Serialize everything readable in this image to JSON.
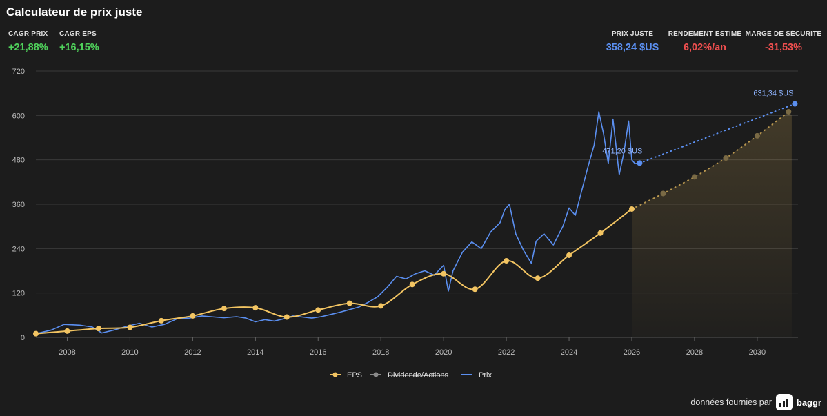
{
  "title": "Calculateur de prix juste",
  "metrics_left": [
    {
      "label": "CAGR PRIX",
      "value": "+21,88%",
      "color": "#4fd15b"
    },
    {
      "label": "CAGR EPS",
      "value": "+16,15%",
      "color": "#4fd15b"
    }
  ],
  "metrics_right": [
    {
      "label": "PRIX JUSTE",
      "value": "358,24 $US",
      "color": "#5b8ff0"
    },
    {
      "label": "RENDEMENT ESTIMÉ",
      "value": "6,02%/an",
      "color": "#ef4f4f"
    },
    {
      "label": "MARGE DE SÉCURITÉ",
      "value": "-31,53%",
      "color": "#ef4f4f"
    }
  ],
  "footer": {
    "text": "données fournies par",
    "brand": "baggr",
    "logo_icon": "bar-chart-logo-icon"
  },
  "chart_data": {
    "type": "line",
    "x_range": [
      2007,
      2031.3
    ],
    "ylim": [
      0,
      720
    ],
    "x_ticks": [
      2008,
      2010,
      2012,
      2014,
      2016,
      2018,
      2020,
      2022,
      2024,
      2026,
      2028,
      2030
    ],
    "y_ticks": [
      0,
      120,
      240,
      360,
      480,
      600,
      720
    ],
    "grid": true,
    "legend_position": "bottom-center",
    "colors": {
      "eps": "#f2c462",
      "dividend": "#8a8a8a",
      "price": "#5b8ff0",
      "grid": "#3a3a3a",
      "axis_text": "#bdbdbd"
    },
    "series": [
      {
        "name": "EPS",
        "x": [
          2007,
          2008,
          2009,
          2010,
          2011,
          2012,
          2013,
          2014,
          2015,
          2016,
          2017,
          2018,
          2019,
          2020,
          2021,
          2022,
          2023,
          2024,
          2025,
          2026
        ],
        "values": [
          10,
          17,
          24,
          27,
          45,
          58,
          78,
          80,
          55,
          74,
          92,
          85,
          143,
          172,
          130,
          207,
          160,
          222,
          282,
          347
        ]
      },
      {
        "name": "EPS (projection)",
        "x": [
          2026,
          2027,
          2028,
          2029,
          2030,
          2031
        ],
        "values": [
          347,
          389,
          434,
          485,
          545,
          610
        ]
      },
      {
        "name": "Prix",
        "x": [
          2007,
          2007.5,
          2007.9,
          2008.4,
          2008.8,
          2009.1,
          2009.5,
          2009.9,
          2010.3,
          2010.7,
          2011.1,
          2011.5,
          2011.9,
          2012.3,
          2012.7,
          2013.0,
          2013.4,
          2013.7,
          2014.0,
          2014.3,
          2014.6,
          2014.9,
          2015.2,
          2015.5,
          2015.8,
          2016.1,
          2016.4,
          2016.7,
          2017.0,
          2017.3,
          2017.6,
          2017.9,
          2018.2,
          2018.5,
          2018.8,
          2019.1,
          2019.4,
          2019.7,
          2020.0,
          2020.15,
          2020.3,
          2020.6,
          2020.9,
          2021.2,
          2021.5,
          2021.8,
          2021.95,
          2022.1,
          2022.3,
          2022.55,
          2022.8,
          2022.95,
          2023.2,
          2023.5,
          2023.8,
          2024.0,
          2024.2,
          2024.4,
          2024.6,
          2024.8,
          2024.95,
          2025.1,
          2025.25,
          2025.4,
          2025.6,
          2025.75,
          2025.9,
          2026.0,
          2026.1,
          2026.25
        ],
        "values": [
          10,
          20,
          35,
          33,
          28,
          12,
          20,
          30,
          38,
          28,
          35,
          50,
          52,
          58,
          55,
          53,
          56,
          52,
          42,
          48,
          44,
          50,
          58,
          55,
          52,
          56,
          62,
          68,
          75,
          82,
          95,
          110,
          135,
          165,
          158,
          172,
          180,
          168,
          195,
          125,
          180,
          230,
          258,
          240,
          285,
          310,
          345,
          360,
          280,
          235,
          200,
          260,
          280,
          250,
          300,
          350,
          330,
          395,
          460,
          520,
          610,
          550,
          470,
          590,
          440,
          500,
          585,
          480,
          470,
          471.2
        ]
      },
      {
        "name": "Prix (projection)",
        "x": [
          2026.25,
          2031.2
        ],
        "values": [
          471.2,
          631.34
        ]
      }
    ],
    "legend": [
      {
        "name": "EPS",
        "color": "#f2c462",
        "strike": false
      },
      {
        "name": "Dividende/Actions",
        "color": "#8a8a8a",
        "strike": true
      },
      {
        "name": "Prix",
        "color": "#5b8ff0",
        "strike": false
      }
    ],
    "annotations": [
      {
        "text": "631,34 $US",
        "x": 2031.2,
        "y": 631.34
      },
      {
        "text": "471,20 $US",
        "x": 2026.25,
        "y": 471.2
      }
    ]
  }
}
